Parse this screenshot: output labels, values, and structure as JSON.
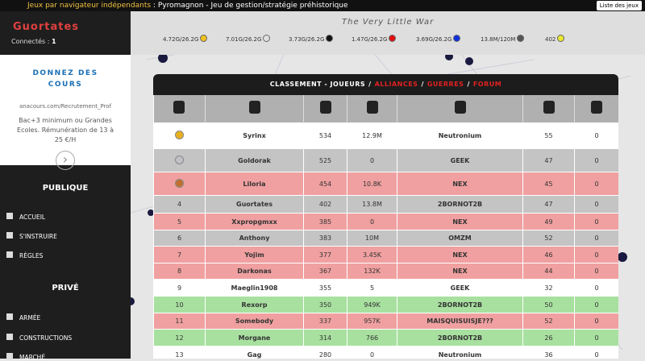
{
  "topbar": {
    "site": "Jeux par navigateur indépendants",
    "colon": ":",
    "game": "Pyromagnon",
    "tagline": "- Jeu de gestion/stratégie préhistorique",
    "menu": "Liste des jeux"
  },
  "sidebar": {
    "player": "Guortates",
    "online_label": "Connectés :",
    "online_count": "1",
    "ad": {
      "headline": "DONNEZ DES COURS",
      "url": "anacours.com/Recrutement_Prof",
      "text": "Bac+3 minimum ou Grandes Ecoles. Rémunération de 13 à 25 €/H"
    },
    "sections": [
      {
        "title": "PUBLIQUE",
        "items": [
          "ACCUEIL",
          "S'INSTRUIRE",
          "RÈGLES"
        ]
      },
      {
        "title": "PRIVÉ",
        "items": [
          "ARMÉE",
          "CONSTRUCTIONS",
          "MARCHÉ"
        ]
      }
    ]
  },
  "header": {
    "logo": "The Very Little War",
    "resources": [
      {
        "text": "4.72G/26.2G",
        "color": "#f0c020"
      },
      {
        "text": "7.01G/26.2G",
        "color": "#e0e0e0"
      },
      {
        "text": "3.73G/26.2G",
        "color": "#111111"
      },
      {
        "text": "1.47G/26.2G",
        "color": "#e01010"
      },
      {
        "text": "3.69G/26.2G",
        "color": "#1030e0"
      },
      {
        "text": "13.8M/120M",
        "color": "#555555"
      },
      {
        "text": "402",
        "color": "#e8e830"
      }
    ]
  },
  "table": {
    "title": "CLASSEMENT - JOUEURS",
    "separator": "/",
    "links": [
      "ALLIANCES",
      "GUERRES",
      "FORUM"
    ],
    "rows": [
      {
        "name": "Syrinx",
        "score": "534",
        "atoms": "12.9M",
        "alliance": "Neutronium",
        "col6": "55",
        "col7": "0",
        "medal": "#e8b020",
        "color": "#ffffff"
      },
      {
        "name": "Goldorak",
        "score": "525",
        "atoms": "0",
        "alliance": "GEEK",
        "col6": "47",
        "col7": "0",
        "medal": "#c0c0c8",
        "color": "#c4c4c4"
      },
      {
        "name": "Liloria",
        "score": "454",
        "atoms": "10.8K",
        "alliance": "NEX",
        "col6": "45",
        "col7": "0",
        "medal": "#c07030",
        "color": "#f0a0a0"
      },
      {
        "rank": "4",
        "name": "Guortates",
        "score": "402",
        "atoms": "13.8M",
        "alliance": "2BORNOT2B",
        "col6": "47",
        "col7": "0",
        "color": "#c4c4c4"
      },
      {
        "rank": "5",
        "name": "Xxpropgmxx",
        "score": "385",
        "atoms": "0",
        "alliance": "NEX",
        "col6": "49",
        "col7": "0",
        "color": "#f0a0a0"
      },
      {
        "rank": "6",
        "name": "Anthony",
        "score": "383",
        "atoms": "10M",
        "alliance": "OMZM",
        "col6": "52",
        "col7": "0",
        "color": "#c4c4c4"
      },
      {
        "rank": "7",
        "name": "Yojim",
        "score": "377",
        "atoms": "3.45K",
        "alliance": "NEX",
        "col6": "46",
        "col7": "0",
        "color": "#f0a0a0"
      },
      {
        "rank": "8",
        "name": "Darkonas",
        "score": "367",
        "atoms": "132K",
        "alliance": "NEX",
        "col6": "44",
        "col7": "0",
        "color": "#f0a0a0"
      },
      {
        "rank": "9",
        "name": "Maeglin1908",
        "score": "355",
        "atoms": "5",
        "alliance": "GEEK",
        "col6": "32",
        "col7": "0",
        "color": "#ffffff"
      },
      {
        "rank": "10",
        "name": "Rexorp",
        "score": "350",
        "atoms": "949K",
        "alliance": "2BORNOT2B",
        "col6": "50",
        "col7": "0",
        "color": "#a8e0a0"
      },
      {
        "rank": "11",
        "name": "Somebody",
        "score": "337",
        "atoms": "957K",
        "alliance": "MAISQUISUISJE???",
        "col6": "52",
        "col7": "0",
        "color": "#f0a0a0"
      },
      {
        "rank": "12",
        "name": "Morgane",
        "score": "314",
        "atoms": "766",
        "alliance": "2BORNOT2B",
        "col6": "26",
        "col7": "0",
        "color": "#a8e0a0"
      },
      {
        "rank": "13",
        "name": "Gag",
        "score": "280",
        "atoms": "0",
        "alliance": "Neutronium",
        "col6": "36",
        "col7": "0",
        "color": "#ffffff"
      }
    ]
  }
}
